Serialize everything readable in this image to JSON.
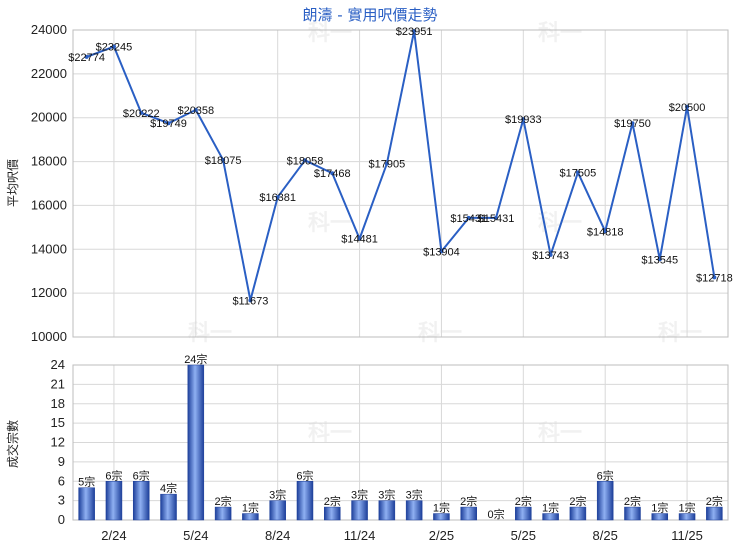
{
  "title": "朗濤 - 實用呎價走勢",
  "watermark": "科一",
  "chart_data": [
    {
      "type": "line",
      "ylabel": "平均呎價",
      "ylim": [
        10000,
        24000
      ],
      "yticks": [
        10000,
        12000,
        14000,
        16000,
        18000,
        20000,
        22000,
        24000
      ],
      "xtick_labels": [
        "2/24",
        "5/24",
        "8/24",
        "11/24",
        "2/25",
        "5/25",
        "8/25",
        "11/25"
      ],
      "values": [
        22774,
        23245,
        20222,
        19749,
        20358,
        18075,
        11673,
        16381,
        18058,
        17468,
        14481,
        17905,
        23951,
        13904,
        15431,
        15431,
        19933,
        13743,
        17505,
        14818,
        19750,
        13545,
        20500,
        12718
      ],
      "labels": [
        "$22774",
        "$23245",
        "$20222",
        "$19749",
        "$20358",
        "$18075",
        "$11673",
        "$16381",
        "$18058",
        "$17468",
        "$14481",
        "$17905",
        "$23951",
        "$13904",
        "$15431",
        "$15431",
        "$19933",
        "$13743",
        "$17505",
        "$14818",
        "$19750",
        "$13545",
        "$20500",
        "$12718"
      ],
      "color": "#2a5fc4"
    },
    {
      "type": "bar",
      "ylabel": "成交宗數",
      "ylim": [
        0,
        24
      ],
      "yticks": [
        0,
        3,
        6,
        9,
        12,
        15,
        18,
        21,
        24
      ],
      "values": [
        5,
        6,
        6,
        4,
        24,
        2,
        1,
        3,
        6,
        2,
        3,
        3,
        3,
        1,
        2,
        0,
        2,
        1,
        2,
        6,
        2,
        1,
        1,
        2
      ],
      "labels": [
        "5宗",
        "6宗",
        "6宗",
        "4宗",
        "24宗",
        "2宗",
        "1宗",
        "3宗",
        "6宗",
        "2宗",
        "3宗",
        "3宗",
        "3宗",
        "1宗",
        "2宗",
        "0宗",
        "2宗",
        "1宗",
        "2宗",
        "6宗",
        "2宗",
        "1宗",
        "1宗",
        "2宗"
      ],
      "color": "#2f5bc4"
    }
  ]
}
